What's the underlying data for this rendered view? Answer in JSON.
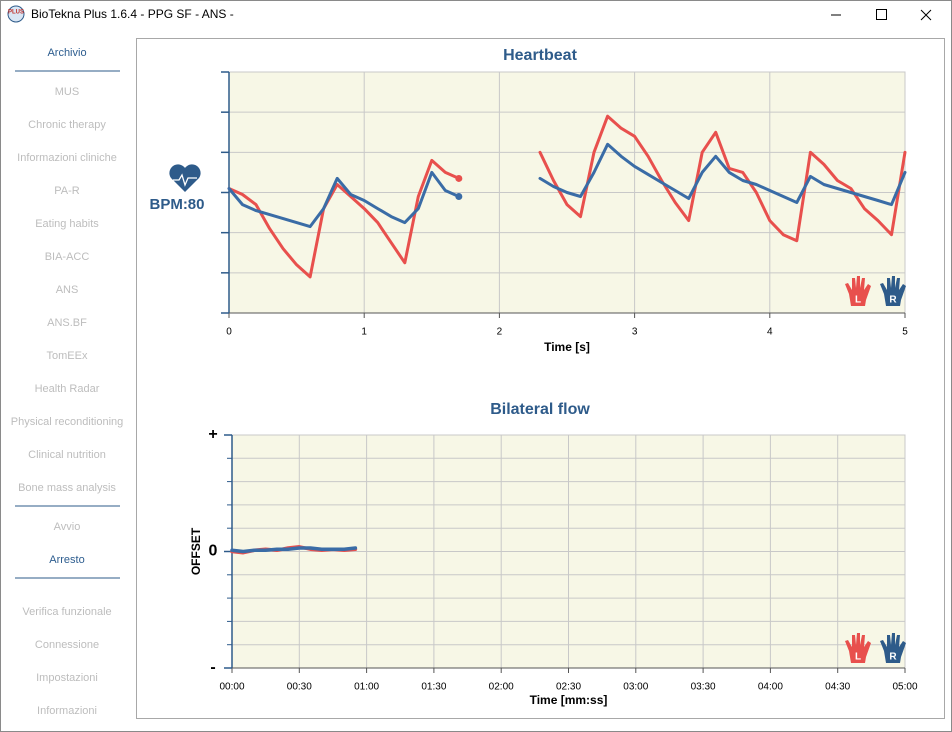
{
  "window": {
    "title": "BioTekna Plus 1.6.4 - PPG SF - ANS -",
    "icon_text": "PLUS"
  },
  "sidebar": {
    "groups": [
      [
        {
          "label": "Archivio",
          "enabled": true
        }
      ],
      [
        {
          "label": "MUS",
          "enabled": false
        },
        {
          "label": "Chronic therapy",
          "enabled": false
        },
        {
          "label": "Informazioni cliniche",
          "enabled": false
        },
        {
          "label": "PA-R",
          "enabled": false
        },
        {
          "label": "Eating habits",
          "enabled": false
        },
        {
          "label": "BIA-ACC",
          "enabled": false
        },
        {
          "label": "ANS",
          "enabled": false
        },
        {
          "label": "ANS.BF",
          "enabled": false
        },
        {
          "label": "TomEEx",
          "enabled": false
        },
        {
          "label": "Health Radar",
          "enabled": false
        },
        {
          "label": "Physical reconditioning",
          "enabled": false
        },
        {
          "label": "Clinical nutrition",
          "enabled": false
        },
        {
          "label": "Bone mass analysis",
          "enabled": false
        }
      ],
      [
        {
          "label": "Avvio",
          "enabled": false
        },
        {
          "label": "Arresto",
          "enabled": true
        }
      ],
      [
        {
          "label": "Verifica funzionale",
          "enabled": false
        },
        {
          "label": "Connessione",
          "enabled": false
        },
        {
          "label": "Impostazioni",
          "enabled": false
        },
        {
          "label": "Informazioni",
          "enabled": false
        }
      ]
    ]
  },
  "hands": {
    "left": "L",
    "right": "R"
  },
  "chart_data": [
    {
      "type": "line",
      "title": "Heartbeat",
      "xlabel": "Time [s]",
      "bpm_label": "BPM:80",
      "x": [
        0,
        0.1,
        0.2,
        0.3,
        0.4,
        0.5,
        0.6,
        0.7,
        0.8,
        0.9,
        1.0,
        1.1,
        1.2,
        1.3,
        1.4,
        1.5,
        1.6,
        1.7,
        1.8,
        1.9,
        2.0,
        2.1,
        2.2,
        2.3,
        2.4,
        2.5,
        2.6,
        2.7,
        2.8,
        2.9,
        3.0,
        3.1,
        3.2,
        3.3,
        3.4,
        3.5,
        3.6,
        3.7,
        3.8,
        3.9,
        4.0,
        4.1,
        4.2,
        4.3,
        4.4,
        4.5,
        4.6,
        4.7,
        4.8,
        4.9,
        5.0
      ],
      "series": [
        {
          "name": "L",
          "color": "#e8504d",
          "values": [
            3.1,
            2.95,
            2.7,
            2.1,
            1.6,
            1.2,
            0.9,
            2.6,
            3.2,
            2.9,
            2.6,
            2.25,
            1.75,
            1.25,
            2.9,
            3.8,
            3.5,
            3.35,
            null,
            null,
            null,
            null,
            null,
            4.0,
            3.3,
            2.7,
            2.4,
            4.0,
            4.9,
            4.6,
            4.4,
            3.9,
            3.3,
            2.75,
            2.3,
            4.0,
            4.5,
            3.6,
            3.5,
            3.0,
            2.3,
            1.95,
            1.8,
            4.0,
            3.7,
            3.3,
            3.1,
            2.6,
            2.3,
            1.95,
            4.0
          ]
        },
        {
          "name": "R",
          "color": "#3a6ca6",
          "values": [
            3.1,
            2.7,
            2.55,
            2.45,
            2.35,
            2.25,
            2.15,
            2.6,
            3.35,
            2.95,
            2.8,
            2.6,
            2.4,
            2.25,
            2.6,
            3.5,
            3.05,
            2.9,
            null,
            null,
            null,
            null,
            null,
            3.35,
            3.15,
            3.0,
            2.9,
            3.5,
            4.2,
            3.9,
            3.65,
            3.45,
            3.25,
            3.05,
            2.85,
            3.5,
            3.9,
            3.5,
            3.3,
            3.2,
            3.05,
            2.9,
            2.75,
            3.4,
            3.2,
            3.1,
            3.0,
            2.9,
            2.8,
            2.7,
            3.5
          ]
        }
      ],
      "xlim": [
        0,
        5
      ],
      "xticks": [
        0,
        1,
        2,
        3,
        4,
        5
      ],
      "ylim": [
        0,
        6
      ],
      "yticks": [
        0,
        1,
        2,
        3,
        4,
        5,
        6
      ],
      "show_ytick_labels": false,
      "end_markers": true,
      "grid": true
    },
    {
      "type": "line",
      "title": "Bilateral flow",
      "xlabel": "Time [mm:ss]",
      "ylabel": "OFFSET",
      "x": [
        0,
        5,
        10,
        15,
        20,
        25,
        30,
        35,
        40,
        45,
        50,
        55
      ],
      "series": [
        {
          "name": "L",
          "color": "#e8504d",
          "values": [
            0.0,
            -0.01,
            0.01,
            0.02,
            0.01,
            0.03,
            0.04,
            0.02,
            0.01,
            0.02,
            0.01,
            0.02
          ]
        },
        {
          "name": "R",
          "color": "#3a6ca6",
          "values": [
            0.01,
            0.0,
            0.01,
            0.01,
            0.02,
            0.02,
            0.03,
            0.03,
            0.02,
            0.02,
            0.02,
            0.03
          ]
        }
      ],
      "xlim": [
        0,
        300
      ],
      "xticks": [
        {
          "value": 0,
          "label": "00:00"
        },
        {
          "value": 30,
          "label": "00:30"
        },
        {
          "value": 60,
          "label": "01:00"
        },
        {
          "value": 90,
          "label": "01:30"
        },
        {
          "value": 120,
          "label": "02:00"
        },
        {
          "value": 150,
          "label": "02:30"
        },
        {
          "value": 180,
          "label": "03:00"
        },
        {
          "value": 210,
          "label": "03:30"
        },
        {
          "value": 240,
          "label": "04:00"
        },
        {
          "value": 270,
          "label": "04:30"
        },
        {
          "value": 300,
          "label": "05:00"
        }
      ],
      "ylim": [
        -1,
        1
      ],
      "yticks": [
        {
          "value": 1,
          "label": "+"
        },
        0,
        {
          "value": -1,
          "label": "-"
        }
      ],
      "ygrid": [
        -0.8,
        -0.6,
        -0.4,
        -0.2,
        0.2,
        0.4,
        0.6,
        0.8
      ],
      "show_ytick_labels": true,
      "end_markers": false,
      "grid": true
    }
  ]
}
